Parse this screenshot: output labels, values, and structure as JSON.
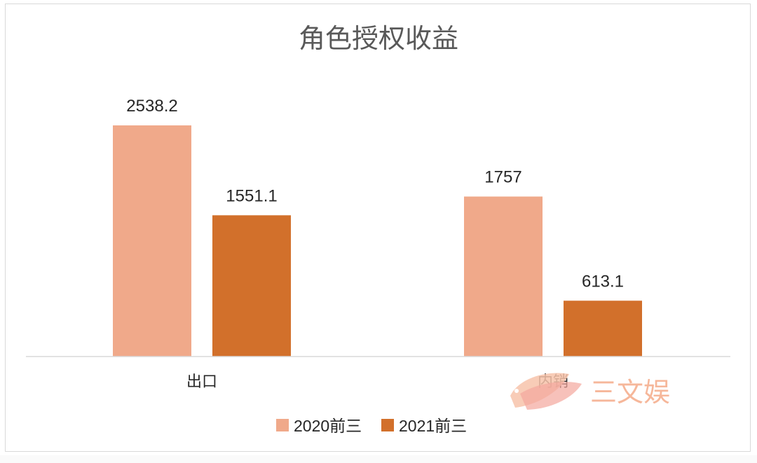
{
  "chart_data": {
    "type": "bar",
    "title": "角色授权收益",
    "categories": [
      "出口",
      "内销"
    ],
    "series": [
      {
        "name": "2020前三",
        "values": [
          2538.2,
          1757
        ],
        "color": "#f0a98a"
      },
      {
        "name": "2021前三",
        "values": [
          1551.1,
          613.1
        ],
        "color": "#d2702b"
      }
    ],
    "value_labels": [
      [
        "2538.2",
        "1757"
      ],
      [
        "1551.1",
        "613.1"
      ]
    ],
    "ylim": [
      0,
      2700
    ],
    "grid": false,
    "legend": "bottom"
  },
  "watermark": {
    "text": "三文娱",
    "color": "#f6b79a"
  }
}
